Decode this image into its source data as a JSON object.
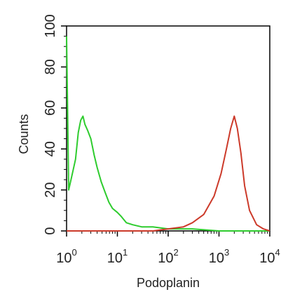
{
  "chart_data": {
    "type": "line",
    "title": "",
    "xlabel": "Podoplanin",
    "ylabel": "Counts",
    "x_scale": "log",
    "xlim": [
      1,
      10000
    ],
    "ylim": [
      0,
      100
    ],
    "x_ticks": [
      {
        "value": 1,
        "base": "10",
        "exp": "0"
      },
      {
        "value": 10,
        "base": "10",
        "exp": "1"
      },
      {
        "value": 100,
        "base": "10",
        "exp": "2"
      },
      {
        "value": 1000,
        "base": "10",
        "exp": "3"
      },
      {
        "value": 10000,
        "base": "10",
        "exp": "4"
      }
    ],
    "y_ticks": [
      "0",
      "20",
      "40",
      "60",
      "80",
      "100"
    ],
    "grid": false,
    "series": [
      {
        "color": "#2ecc2e",
        "x": [
          1.0,
          1.1,
          1.3,
          1.5,
          1.7,
          1.9,
          2.1,
          2.3,
          2.6,
          3.0,
          3.5,
          4.0,
          4.8,
          5.7,
          6.8,
          8.0,
          10,
          12,
          15,
          20,
          30,
          50,
          100,
          300,
          1000,
          10000
        ],
        "y": [
          95,
          20,
          28,
          35,
          48,
          54,
          56,
          52,
          49,
          45,
          37,
          31,
          24,
          19,
          14,
          11,
          9,
          7,
          4,
          3,
          2,
          2,
          1,
          1,
          0,
          0
        ]
      },
      {
        "color": "#cc3a2a",
        "x": [
          1.0,
          50,
          100,
          200,
          300,
          500,
          800,
          1100,
          1400,
          1700,
          2000,
          2300,
          2700,
          3200,
          4000,
          5500,
          7500,
          10000
        ],
        "y": [
          0,
          0,
          1,
          2,
          4,
          8,
          17,
          28,
          40,
          50,
          56,
          50,
          38,
          22,
          10,
          3,
          1,
          0
        ]
      }
    ]
  }
}
